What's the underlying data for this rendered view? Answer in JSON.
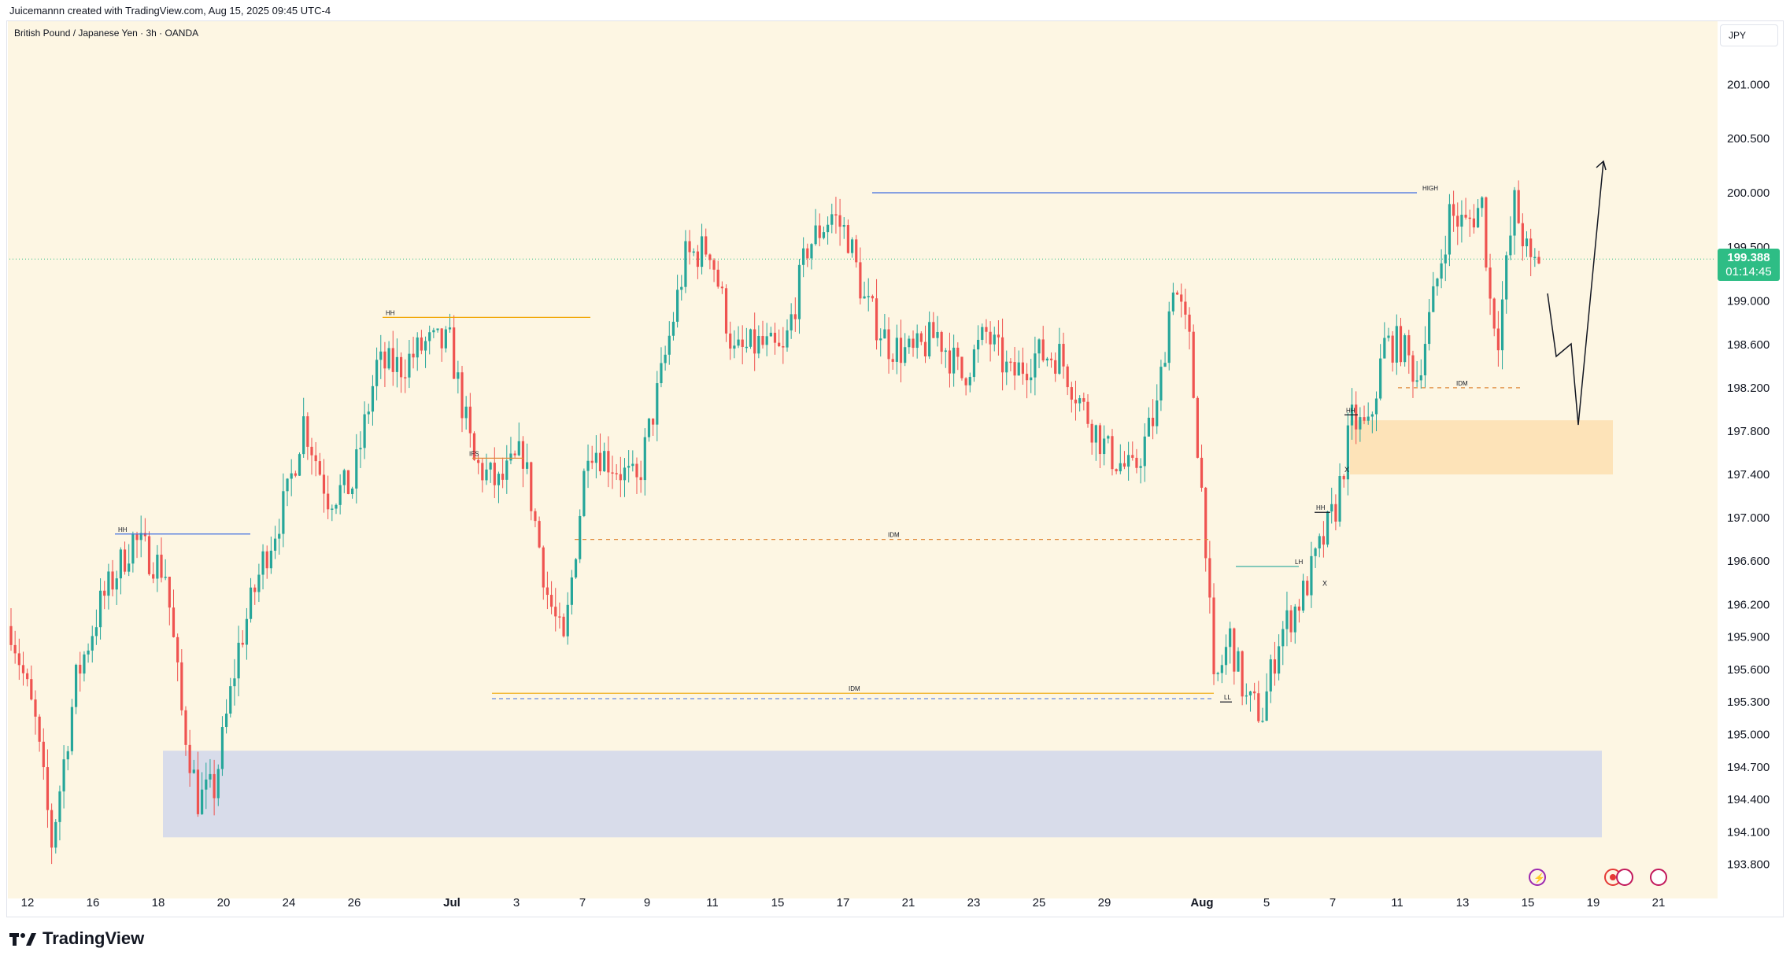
{
  "header": {
    "caption": "Juicemannn created with TradingView.com, Aug 15, 2025 09:45 UTC-4"
  },
  "symbol": {
    "title": "British Pound / Japanese Yen · 3h · OANDA"
  },
  "currency": "JPY",
  "price_tag": {
    "price": "199.388",
    "countdown": "01:14:45"
  },
  "footer": {
    "brand": "TradingView"
  },
  "colors": {
    "bg": "#fdf6e3",
    "up": "#26a69a",
    "down": "#ef5350",
    "demand_zone": "#fde3b8",
    "blue_zone": "#d8dcea",
    "price_tag": "#2ebd85"
  },
  "chart_data": {
    "type": "candlestick",
    "ylim": [
      193.6,
      201.4
    ],
    "y_ticks": [
      "201.000",
      "200.500",
      "200.000",
      "199.500",
      "199.000",
      "198.600",
      "198.200",
      "197.800",
      "197.400",
      "197.000",
      "196.600",
      "196.200",
      "195.900",
      "195.600",
      "195.300",
      "195.000",
      "194.700",
      "194.400",
      "194.100",
      "193.800"
    ],
    "x_ticks": [
      "12",
      "16",
      "18",
      "20",
      "24",
      "26",
      "Jul",
      "3",
      "7",
      "9",
      "11",
      "15",
      "17",
      "21",
      "23",
      "25",
      "29",
      "Aug",
      "5",
      "7",
      "11",
      "13",
      "15",
      "19",
      "21"
    ],
    "current_price": 199.388,
    "anchors": [
      {
        "t": 0,
        "p": 196.0
      },
      {
        "t": 6,
        "p": 195.1
      },
      {
        "t": 10,
        "p": 194.0
      },
      {
        "t": 16,
        "p": 195.5
      },
      {
        "t": 22,
        "p": 196.2
      },
      {
        "t": 30,
        "p": 196.8
      },
      {
        "t": 38,
        "p": 196.5
      },
      {
        "t": 42,
        "p": 195.2
      },
      {
        "t": 46,
        "p": 194.4
      },
      {
        "t": 50,
        "p": 194.5
      },
      {
        "t": 56,
        "p": 195.8
      },
      {
        "t": 62,
        "p": 196.6
      },
      {
        "t": 68,
        "p": 197.2
      },
      {
        "t": 72,
        "p": 197.9
      },
      {
        "t": 78,
        "p": 197.2
      },
      {
        "t": 84,
        "p": 197.3
      },
      {
        "t": 90,
        "p": 198.4
      },
      {
        "t": 96,
        "p": 198.4
      },
      {
        "t": 102,
        "p": 198.6
      },
      {
        "t": 108,
        "p": 198.6
      },
      {
        "t": 114,
        "p": 197.5
      },
      {
        "t": 120,
        "p": 197.3
      },
      {
        "t": 126,
        "p": 197.6
      },
      {
        "t": 132,
        "p": 196.3
      },
      {
        "t": 136,
        "p": 195.8
      },
      {
        "t": 142,
        "p": 197.7
      },
      {
        "t": 148,
        "p": 197.5
      },
      {
        "t": 154,
        "p": 197.3
      },
      {
        "t": 160,
        "p": 198.3
      },
      {
        "t": 166,
        "p": 199.4
      },
      {
        "t": 172,
        "p": 199.5
      },
      {
        "t": 178,
        "p": 198.5
      },
      {
        "t": 184,
        "p": 198.6
      },
      {
        "t": 190,
        "p": 198.5
      },
      {
        "t": 196,
        "p": 199.5
      },
      {
        "t": 202,
        "p": 199.8
      },
      {
        "t": 206,
        "p": 199.6
      },
      {
        "t": 210,
        "p": 199.0
      },
      {
        "t": 216,
        "p": 198.6
      },
      {
        "t": 222,
        "p": 198.5
      },
      {
        "t": 228,
        "p": 198.7
      },
      {
        "t": 234,
        "p": 198.3
      },
      {
        "t": 240,
        "p": 198.7
      },
      {
        "t": 246,
        "p": 198.3
      },
      {
        "t": 252,
        "p": 198.5
      },
      {
        "t": 258,
        "p": 198.5
      },
      {
        "t": 264,
        "p": 198.0
      },
      {
        "t": 270,
        "p": 197.6
      },
      {
        "t": 276,
        "p": 197.4
      },
      {
        "t": 282,
        "p": 198.0
      },
      {
        "t": 286,
        "p": 199.2
      },
      {
        "t": 290,
        "p": 198.6
      },
      {
        "t": 294,
        "p": 196.8
      },
      {
        "t": 296,
        "p": 195.4
      },
      {
        "t": 300,
        "p": 195.9
      },
      {
        "t": 304,
        "p": 195.3
      },
      {
        "t": 308,
        "p": 195.2
      },
      {
        "t": 312,
        "p": 195.9
      },
      {
        "t": 318,
        "p": 196.3
      },
      {
        "t": 322,
        "p": 196.7
      },
      {
        "t": 326,
        "p": 197.1
      },
      {
        "t": 330,
        "p": 197.9
      },
      {
        "t": 334,
        "p": 197.8
      },
      {
        "t": 338,
        "p": 198.6
      },
      {
        "t": 342,
        "p": 198.6
      },
      {
        "t": 346,
        "p": 198.3
      },
      {
        "t": 350,
        "p": 199.0
      },
      {
        "t": 354,
        "p": 199.8
      },
      {
        "t": 358,
        "p": 199.7
      },
      {
        "t": 362,
        "p": 199.9
      },
      {
        "t": 364,
        "p": 199.0
      },
      {
        "t": 366,
        "p": 198.7
      },
      {
        "t": 370,
        "p": 199.9
      },
      {
        "t": 374,
        "p": 199.3
      },
      {
        "t": 376,
        "p": 199.4
      }
    ],
    "annotations": {
      "levels": [
        {
          "label": "HIGH",
          "price": 200.0
        },
        {
          "label": "HH",
          "price": 198.85
        },
        {
          "label": "HH",
          "price": 196.85
        },
        {
          "label": "IDM",
          "price": 196.8
        },
        {
          "label": "IDM",
          "price": 195.38
        },
        {
          "label": "IDM",
          "price": 198.2
        },
        {
          "label": "LH",
          "price": 196.55
        },
        {
          "label": "HH",
          "price": 197.05
        },
        {
          "label": "HH",
          "price": 197.95
        },
        {
          "label": "LL",
          "price": 195.3
        },
        {
          "label": "IFS",
          "price": 197.55
        },
        {
          "label": "X",
          "price": 196.4
        },
        {
          "label": "X",
          "price": 197.45
        }
      ],
      "zones": [
        {
          "name": "demand",
          "from": 197.4,
          "to": 197.9
        },
        {
          "name": "blue",
          "from": 194.05,
          "to": 194.85
        }
      ]
    }
  }
}
